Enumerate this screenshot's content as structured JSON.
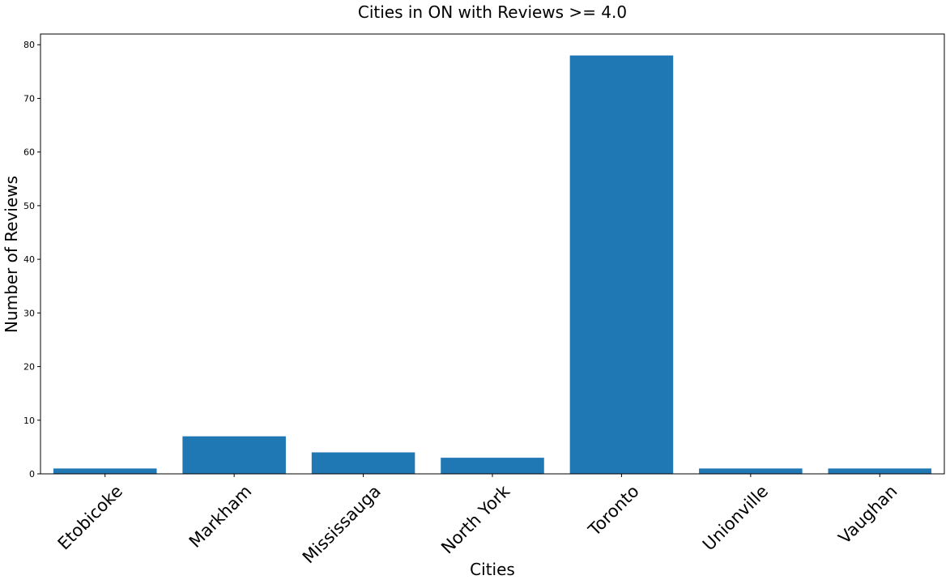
{
  "chart_data": {
    "type": "bar",
    "title": "Cities in ON with Reviews >= 4.0",
    "xlabel": "Cities",
    "ylabel": "Number of Reviews",
    "categories": [
      "Etobicoke",
      "Markham",
      "Mississauga",
      "North York",
      "Toronto",
      "Unionville",
      "Vaughan"
    ],
    "values": [
      1,
      7,
      4,
      3,
      78,
      1,
      1
    ],
    "ylim": [
      0,
      82
    ],
    "yticks": [
      0,
      10,
      20,
      30,
      40,
      50,
      60,
      70,
      80
    ],
    "bar_color": "#1f77b4",
    "grid": false,
    "legend": "none"
  }
}
